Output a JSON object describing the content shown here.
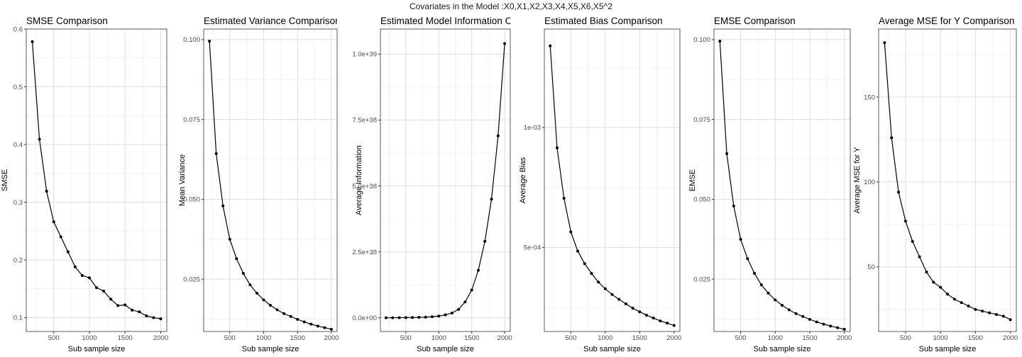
{
  "supertitle": "Covariates in the Model :X0,X1,X2,X3,X4,X5,X6,X5^2",
  "chart_data": [
    {
      "type": "line",
      "title": "SMSE Comparison",
      "xlabel": "Sub sample size",
      "ylabel": "SMSE",
      "x": [
        200,
        300,
        400,
        500,
        600,
        700,
        800,
        900,
        1000,
        1100,
        1200,
        1300,
        1400,
        1500,
        1600,
        1700,
        1800,
        1900,
        2000
      ],
      "values": [
        0.578,
        0.409,
        0.319,
        0.266,
        0.24,
        0.214,
        0.188,
        0.173,
        0.169,
        0.152,
        0.146,
        0.132,
        0.121,
        0.122,
        0.113,
        0.11,
        0.103,
        0.1,
        0.098
      ],
      "xlim": [
        115,
        2085
      ],
      "ylim": [
        0.076,
        0.6
      ],
      "xticks": [
        500,
        1000,
        1500,
        2000
      ],
      "xtick_labels": [
        "500",
        "1000",
        "1500",
        "2000"
      ],
      "yticks": [
        0.1,
        0.2,
        0.3,
        0.4,
        0.5,
        0.6
      ],
      "ytick_labels": [
        "0.1",
        "0.2",
        "0.3",
        "0.4",
        "0.5",
        "0.6"
      ],
      "grid": true
    },
    {
      "type": "line",
      "title": "Estimated Variance Comparison",
      "xlabel": "Sub sample size",
      "ylabel": "Mean Variance",
      "x": [
        200,
        300,
        400,
        500,
        600,
        700,
        800,
        900,
        1000,
        1100,
        1200,
        1300,
        1400,
        1500,
        1600,
        1700,
        1800,
        1900,
        2000
      ],
      "values": [
        0.0995,
        0.0643,
        0.0479,
        0.0375,
        0.0314,
        0.0268,
        0.0232,
        0.0206,
        0.0185,
        0.0168,
        0.0154,
        0.0142,
        0.0133,
        0.0124,
        0.0116,
        0.0109,
        0.0103,
        0.0098,
        0.0093
      ],
      "xlim": [
        115,
        2085
      ],
      "ylim": [
        0.0086,
        0.1033
      ],
      "xticks": [
        500,
        1000,
        1500,
        2000
      ],
      "xtick_labels": [
        "500",
        "1000",
        "1500",
        "2000"
      ],
      "yticks": [
        0.025,
        0.05,
        0.075,
        0.1
      ],
      "ytick_labels": [
        "0.025",
        "0.050",
        "0.075",
        "0.100"
      ],
      "grid": true
    },
    {
      "type": "line",
      "title": "Estimated Model Information Co",
      "xlabel": "Sub sample size",
      "ylabel": "Average Information",
      "x": [
        200,
        300,
        400,
        500,
        600,
        700,
        800,
        900,
        1000,
        1100,
        1200,
        1300,
        1400,
        1500,
        1600,
        1700,
        1800,
        1900,
        2000
      ],
      "values": [
        1e+35,
        2e+35,
        3e+35,
        6e+35,
        1e+36,
        1.6e+36,
        2.5e+36,
        4e+36,
        6.5e+36,
        1.1e+37,
        1.8e+37,
        3.2e+37,
        6e+37,
        1.05e+38,
        1.8e+38,
        2.9e+38,
        4.5e+38,
        6.9e+38,
        1.04e+39
      ],
      "xlim": [
        115,
        2085
      ],
      "ylim": [
        -5.2e+37,
        1.095e+39
      ],
      "xticks": [
        500,
        1000,
        1500,
        2000
      ],
      "xtick_labels": [
        "500",
        "1000",
        "1500",
        "2000"
      ],
      "yticks": [
        0,
        2.5e+38,
        5e+38,
        7.5e+38,
        1e+39
      ],
      "ytick_labels": [
        "0.0e+00",
        "2.5e+38",
        "5.0e+38",
        "7.5e+38",
        "1.0e+39"
      ],
      "grid": true
    },
    {
      "type": "line",
      "title": "Estimated Bias Comparison",
      "xlabel": "Sub sample size",
      "ylabel": "Average Bias",
      "x": [
        200,
        300,
        400,
        500,
        600,
        700,
        800,
        900,
        1000,
        1100,
        1200,
        1300,
        1400,
        1500,
        1600,
        1700,
        1800,
        1900,
        2000
      ],
      "values": [
        0.00134,
        0.000915,
        0.000705,
        0.000565,
        0.000485,
        0.000433,
        0.000392,
        0.000356,
        0.000328,
        0.000304,
        0.000284,
        0.000265,
        0.000247,
        0.000232,
        0.000218,
        0.000206,
        0.000194,
        0.000185,
        0.000175
      ],
      "xlim": [
        115,
        2085
      ],
      "ylim": [
        0.00015,
        0.00141
      ],
      "xticks": [
        500,
        1000,
        1500,
        2000
      ],
      "xtick_labels": [
        "500",
        "1000",
        "1500",
        "2000"
      ],
      "yticks": [
        0.0005,
        0.001
      ],
      "ytick_labels": [
        "5e-04",
        "1e-03"
      ],
      "grid": true
    },
    {
      "type": "line",
      "title": "EMSE Comparison",
      "xlabel": "Sub sample size",
      "ylabel": "EMSE",
      "x": [
        200,
        300,
        400,
        500,
        600,
        700,
        800,
        900,
        1000,
        1100,
        1200,
        1300,
        1400,
        1500,
        1600,
        1700,
        1800,
        1900,
        2000
      ],
      "values": [
        0.0995,
        0.0643,
        0.0479,
        0.0375,
        0.0314,
        0.0268,
        0.0232,
        0.0206,
        0.0185,
        0.0168,
        0.0154,
        0.0142,
        0.0133,
        0.0124,
        0.0116,
        0.0109,
        0.0103,
        0.0098,
        0.0093
      ],
      "xlim": [
        115,
        2085
      ],
      "ylim": [
        0.0086,
        0.1033
      ],
      "xticks": [
        500,
        1000,
        1500,
        2000
      ],
      "xtick_labels": [
        "500",
        "1000",
        "1500",
        "2000"
      ],
      "yticks": [
        0.025,
        0.05,
        0.075,
        0.1
      ],
      "ytick_labels": [
        "0.025",
        "0.050",
        "0.075",
        "0.100"
      ],
      "grid": true
    },
    {
      "type": "line",
      "title": "Average MSE for Y Comparison",
      "xlabel": "Sub sample size",
      "ylabel": "Average MSE for Y",
      "x": [
        200,
        300,
        400,
        500,
        600,
        700,
        800,
        900,
        1000,
        1100,
        1200,
        1300,
        1400,
        1500,
        1600,
        1700,
        1800,
        1900,
        2000
      ],
      "values": [
        182,
        126,
        94,
        77,
        65,
        56,
        47,
        41,
        38,
        34,
        31,
        29,
        27,
        25,
        24,
        23,
        22,
        21,
        19
      ],
      "xlim": [
        115,
        2085
      ],
      "ylim": [
        12,
        190
      ],
      "xticks": [
        500,
        1000,
        1500,
        2000
      ],
      "xtick_labels": [
        "500",
        "1000",
        "1500",
        "2000"
      ],
      "yticks": [
        50,
        100,
        150
      ],
      "ytick_labels": [
        "50",
        "100",
        "150"
      ],
      "grid": true
    }
  ]
}
